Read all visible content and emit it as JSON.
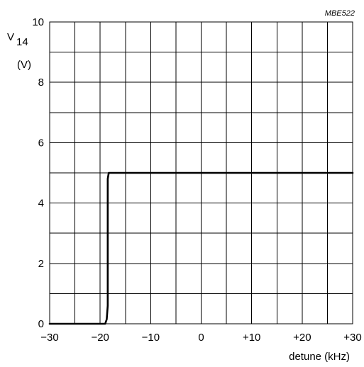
{
  "chart_data": {
    "type": "line",
    "figure_code": "MBE522",
    "ylabel": {
      "main": "V",
      "subscript": "14",
      "unit": "(V)"
    },
    "xlabel": "detune (kHz)",
    "xlim": [
      -30,
      30
    ],
    "ylim": [
      0,
      10
    ],
    "x_ticks": [
      {
        "value": -30,
        "label": "−30"
      },
      {
        "value": -20,
        "label": "−20"
      },
      {
        "value": -10,
        "label": "−10"
      },
      {
        "value": 0,
        "label": "0"
      },
      {
        "value": 10,
        "label": "+10"
      },
      {
        "value": 20,
        "label": "+20"
      },
      {
        "value": 30,
        "label": "+30"
      }
    ],
    "y_ticks": [
      {
        "value": 0,
        "label": "0"
      },
      {
        "value": 2,
        "label": "2"
      },
      {
        "value": 4,
        "label": "4"
      },
      {
        "value": 6,
        "label": "6"
      },
      {
        "value": 8,
        "label": "8"
      },
      {
        "value": 10,
        "label": "10"
      }
    ],
    "x_grid_step": 5,
    "y_grid_step": 1,
    "grid": true,
    "legend": "none",
    "series": [
      {
        "x": [
          -30,
          -19,
          -18.7,
          -18.5,
          -18.5,
          -18.3,
          30
        ],
        "y": [
          0,
          0,
          0.15,
          0.6,
          4.8,
          5,
          5
        ]
      }
    ]
  }
}
